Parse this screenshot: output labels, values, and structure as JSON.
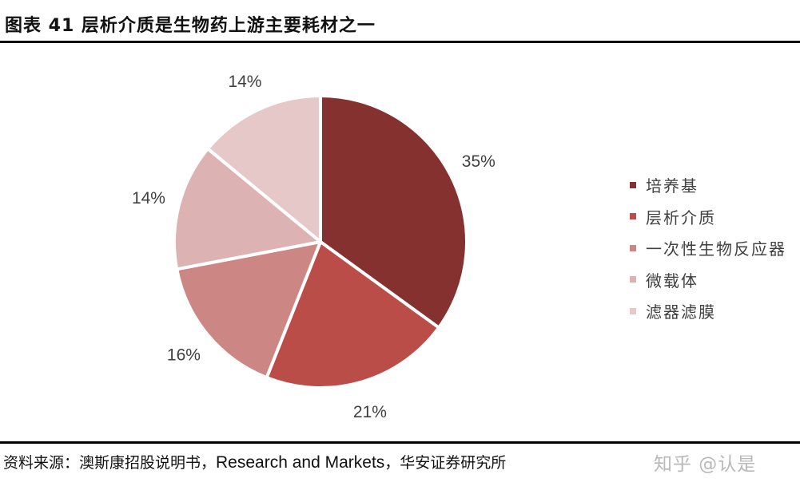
{
  "title": "图表 41  层析介质是生物药上游主要耗材之一",
  "chart_data": {
    "type": "pie",
    "title": "层析介质是生物药上游主要耗材之一",
    "figure_label": "图表 41",
    "start_angle": "12 o'clock",
    "direction": "clockwise",
    "categories": [
      "培养基",
      "层析介质",
      "一次性生物反应器",
      "微载体",
      "滤器滤膜"
    ],
    "values": [
      35,
      21,
      16,
      14,
      14
    ],
    "value_labels": [
      "35%",
      "21%",
      "16%",
      "14%",
      "14%"
    ],
    "colors": [
      "#85312f",
      "#bb4d49",
      "#cc8684",
      "#dcb3b2",
      "#e6c8c8"
    ],
    "legend_position": "right"
  },
  "legend": {
    "items": [
      {
        "label": "培养基",
        "color": "#85312f"
      },
      {
        "label": "层析介质",
        "color": "#bb4d49"
      },
      {
        "label": "一次性生物反应器",
        "color": "#cc8684"
      },
      {
        "label": "微载体",
        "color": "#dcb3b2"
      },
      {
        "label": "滤器滤膜",
        "color": "#e6c8c8"
      }
    ]
  },
  "source": {
    "prefix": "资料来源：澳斯康招股说明书，",
    "english": "Research and Markets",
    "suffix": "，华安证券研究所"
  },
  "watermark": "知乎 @认是"
}
